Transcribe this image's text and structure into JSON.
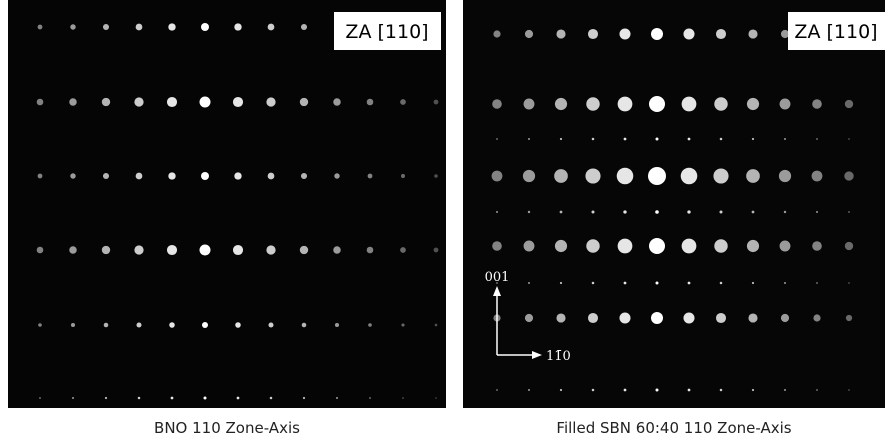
{
  "panels": [
    {
      "label": "ZA [110]",
      "caption": "BNO 110 Zone-Axis"
    },
    {
      "label": "ZA [110]",
      "caption": "Filled SBN 60:40 110 Zone-Axis",
      "axis_up": "001",
      "axis_right": "11̄0"
    }
  ]
}
